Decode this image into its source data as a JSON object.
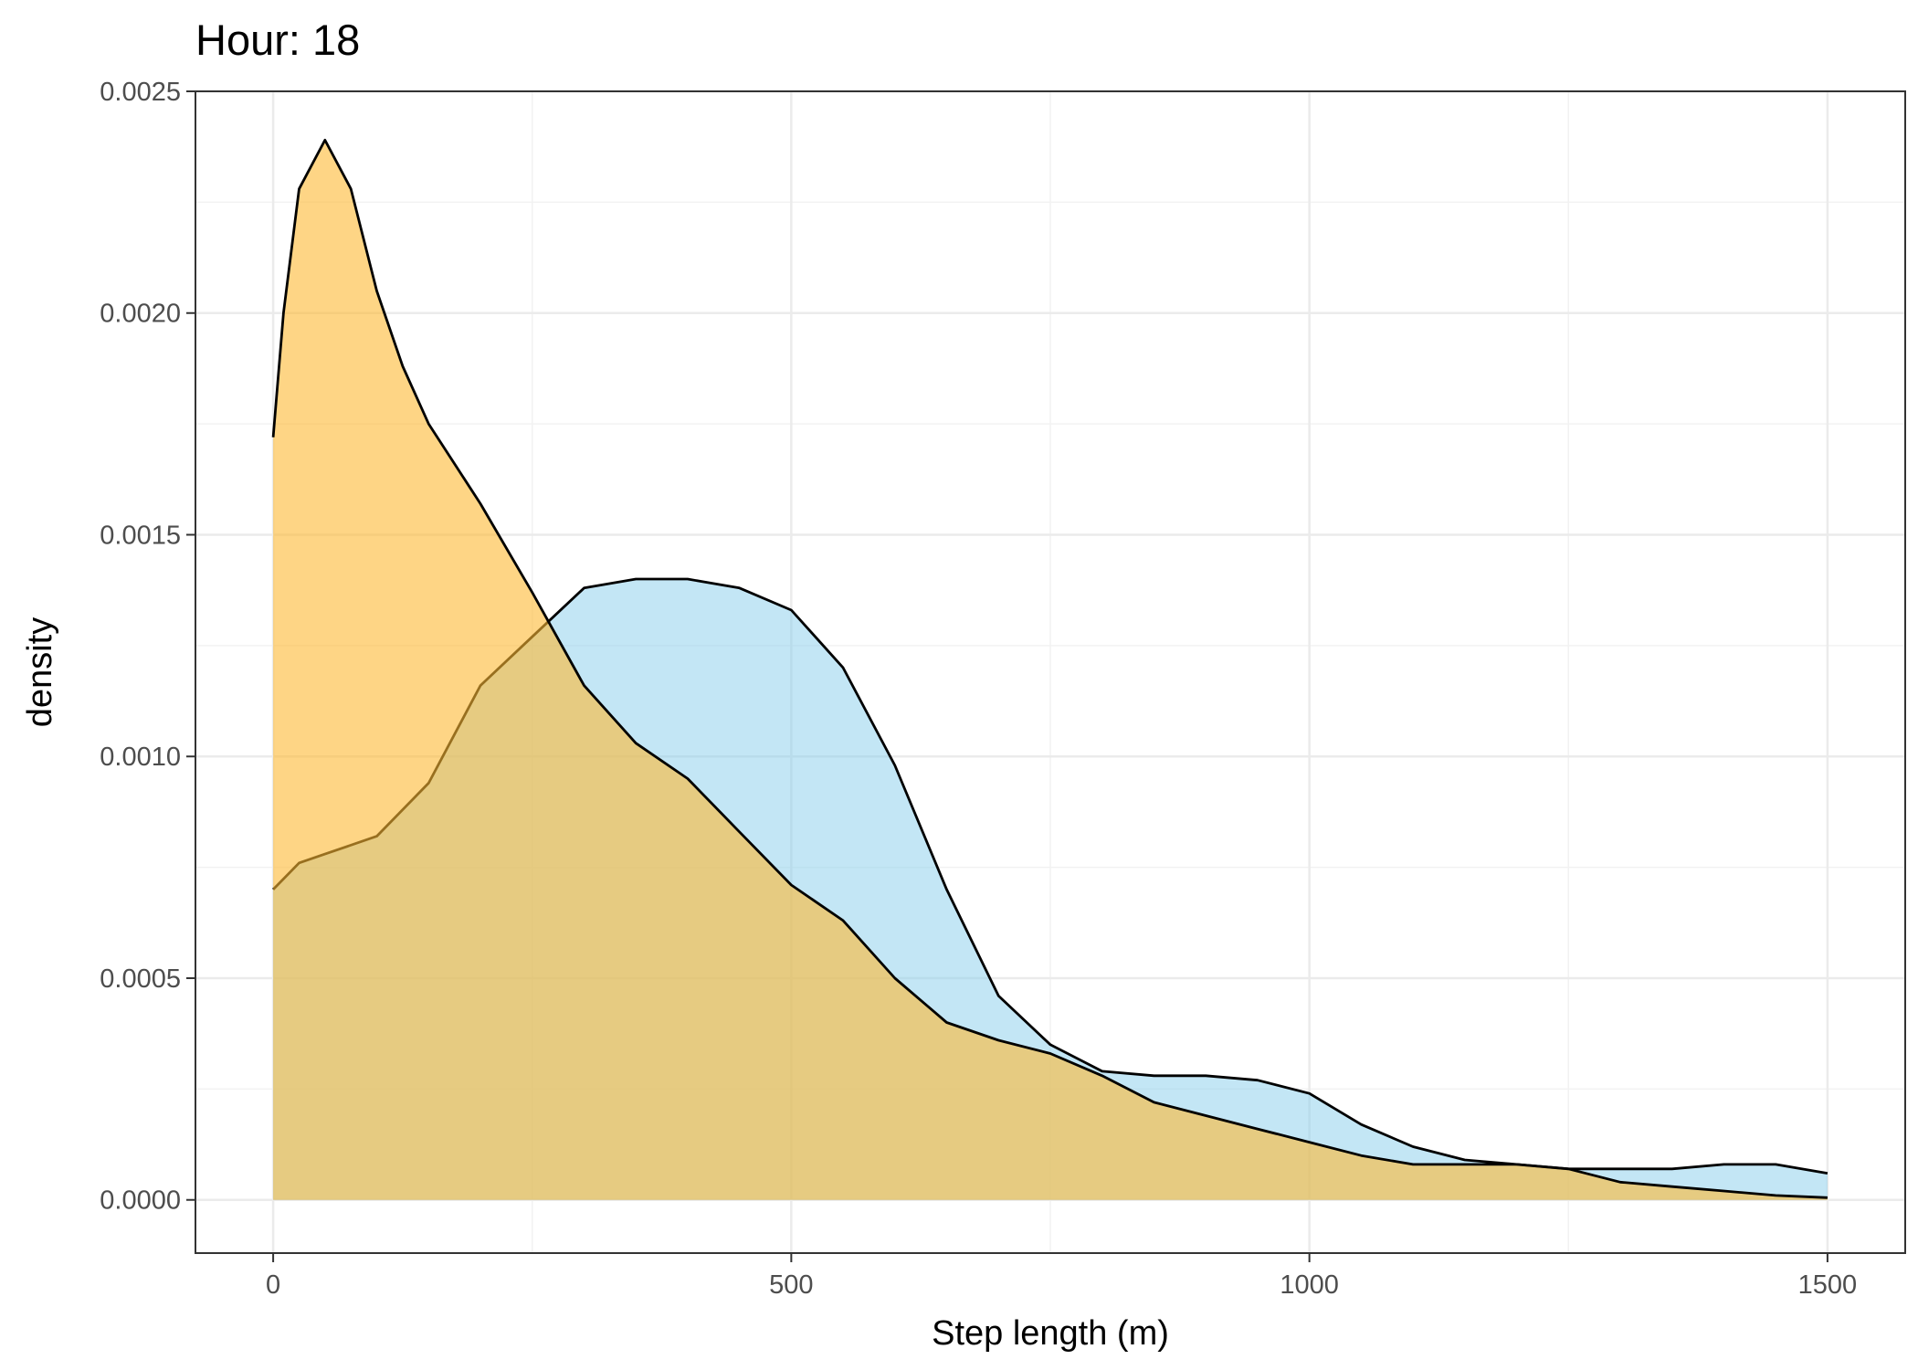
{
  "chart_data": {
    "type": "area",
    "title": "Hour: 18",
    "xlabel": "Step length (m)",
    "ylabel": "density",
    "xlim": [
      -75,
      1575
    ],
    "ylim": [
      -0.00012,
      0.0025
    ],
    "x_ticks": [
      0,
      500,
      1000,
      1500
    ],
    "x_tick_labels": [
      "0",
      "500",
      "1000",
      "1500"
    ],
    "y_ticks": [
      0,
      0.0005,
      0.001,
      0.0015,
      0.002,
      0.0025
    ],
    "y_tick_labels": [
      "0.0000",
      "0.0005",
      "0.0010",
      "0.0015",
      "0.0020",
      "0.0025"
    ],
    "grid": true,
    "legend": "none",
    "series": [
      {
        "color": "#87CEEB",
        "opacity": 0.5,
        "x": [
          0,
          25,
          50,
          100,
          150,
          200,
          250,
          300,
          350,
          400,
          450,
          500,
          550,
          600,
          650,
          700,
          750,
          800,
          850,
          900,
          950,
          1000,
          1050,
          1100,
          1150,
          1200,
          1250,
          1300,
          1350,
          1400,
          1450,
          1500
        ],
        "y": [
          0.0007,
          0.00076,
          0.00078,
          0.00082,
          0.00094,
          0.00116,
          0.00127,
          0.00138,
          0.0014,
          0.0014,
          0.00138,
          0.00133,
          0.0012,
          0.00098,
          0.0007,
          0.00046,
          0.00035,
          0.00029,
          0.00028,
          0.00028,
          0.00027,
          0.00024,
          0.00017,
          0.00012,
          9e-05,
          8e-05,
          7e-05,
          7e-05,
          7e-05,
          8e-05,
          8e-05,
          6e-05
        ]
      },
      {
        "color": "#FDB933",
        "opacity": 0.6,
        "x": [
          0,
          10,
          25,
          50,
          75,
          100,
          125,
          150,
          200,
          250,
          300,
          350,
          400,
          450,
          500,
          550,
          600,
          650,
          700,
          750,
          800,
          850,
          900,
          950,
          1000,
          1050,
          1100,
          1150,
          1200,
          1250,
          1300,
          1350,
          1400,
          1450,
          1500
        ],
        "y": [
          0.00172,
          0.002,
          0.00228,
          0.00239,
          0.00228,
          0.00205,
          0.00188,
          0.00175,
          0.00157,
          0.00137,
          0.00116,
          0.00103,
          0.00095,
          0.00083,
          0.00071,
          0.00063,
          0.0005,
          0.0004,
          0.00036,
          0.00033,
          0.00028,
          0.00022,
          0.00019,
          0.00016,
          0.00013,
          0.0001,
          8e-05,
          8e-05,
          8e-05,
          7e-05,
          4e-05,
          3e-05,
          2e-05,
          1e-05,
          5e-06
        ]
      }
    ]
  }
}
